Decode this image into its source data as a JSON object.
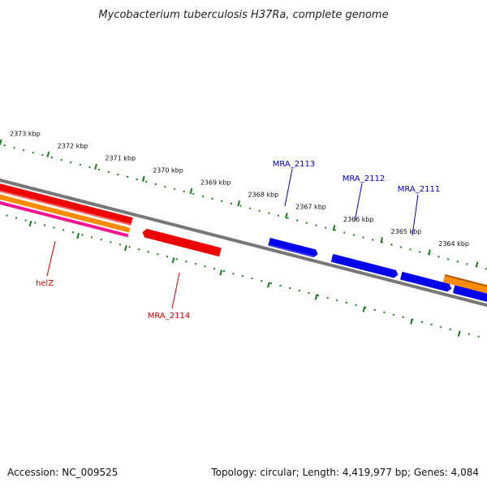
{
  "title": "Mycobacterium tuberculosis H37Ra, complete genome",
  "tick_labels": [
    "2373 kbp",
    "2372 kbp",
    "2371 kbp",
    "2370 kbp",
    "2369 kbp",
    "2368 kbp",
    "2367 kbp",
    "2366 kbp",
    "2365 kbp",
    "2364 kbp"
  ],
  "genes": {
    "forward_strand": [
      {
        "name": "MRA_2113",
        "color": "#0000ee",
        "label_color": "#0000cc"
      },
      {
        "name": "MRA_2112",
        "color": "#0000ee",
        "label_color": "#0000cc"
      },
      {
        "name": "MRA_2111",
        "color": "#0000ee",
        "label_color": "#0000cc"
      }
    ],
    "reverse_strand": [
      {
        "name": "helZ",
        "color": "#ee0000",
        "label_color": "#cc0000"
      },
      {
        "name": "MRA_2114",
        "color": "#ee0000",
        "label_color": "#cc0000"
      }
    ]
  },
  "colors": {
    "backbone": "#777777",
    "ticks": "#1a7a1a",
    "cds_forward": "#0000ee",
    "cds_reverse": "#ee0000",
    "orange_feature": "#ff8c00",
    "pink_feature": "#ff1493",
    "green_feature": "#88ee22"
  },
  "footer": {
    "accession": "Accession: NC_009525",
    "summary": "Topology: circular; Length: 4,419,977 bp; Genes: 4,084"
  }
}
